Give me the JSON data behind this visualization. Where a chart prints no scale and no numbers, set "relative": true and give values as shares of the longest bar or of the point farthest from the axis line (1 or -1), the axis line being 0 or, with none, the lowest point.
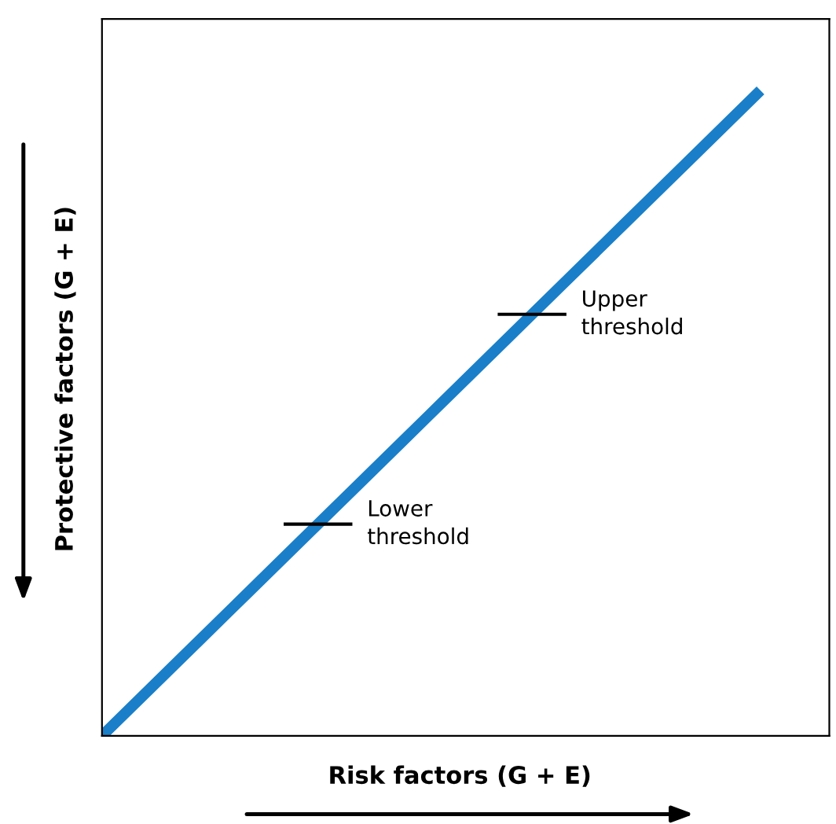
{
  "chart_data": {
    "type": "line",
    "relative": true,
    "xlabel": "Risk factors (G + E)",
    "ylabel": "Protective factors (G + E)",
    "categories": [
      null,
      null,
      null,
      null,
      null,
      null,
      null,
      null,
      null,
      null,
      null
    ],
    "series": [
      {
        "color": "#1a7fc8",
        "values": [
          0,
          0.1,
          0.2,
          0.3,
          0.4,
          0.5,
          0.6,
          0.7,
          0.8,
          0.9,
          1
        ]
      }
    ],
    "ref_lines": [
      {
        "axis": "y",
        "value": 0.657,
        "label": "Upper\nthreshold",
        "color": "#000000"
      },
      {
        "axis": "y",
        "value": 0.33,
        "label": "Lower\nthreshold",
        "color": "#000000"
      }
    ],
    "line_style": "solid"
  }
}
